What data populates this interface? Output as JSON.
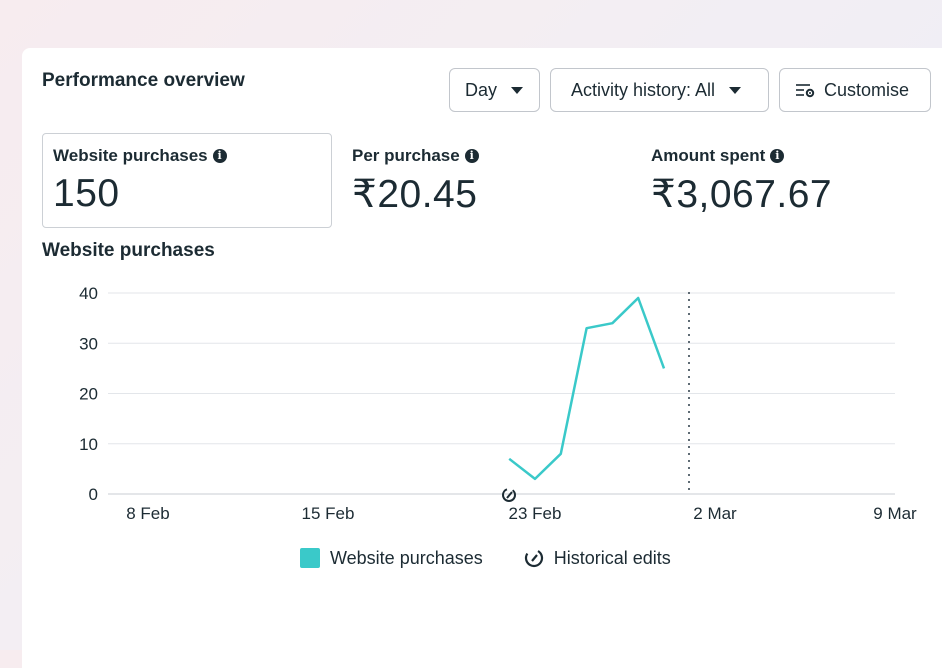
{
  "panel": {
    "title": "Performance overview",
    "day_label": "Day",
    "activity_label": "Activity history: All",
    "customise_label": "Customise"
  },
  "metrics": [
    {
      "label": "Website purchases",
      "value": "150"
    },
    {
      "label": "Per purchase",
      "value": "₹20.45"
    },
    {
      "label": "Amount spent",
      "value": "₹3,067.67"
    }
  ],
  "colors": {
    "series": "#3ac9c9",
    "grid": "#e3e6ea",
    "axis_text": "#1c2b33"
  },
  "chart_data": {
    "type": "line",
    "title": "Website purchases",
    "x_ticks": [
      "8 Feb",
      "15 Feb",
      "23 Feb",
      "2 Mar",
      "9 Mar"
    ],
    "y_ticks": [
      "0",
      "10",
      "20",
      "30",
      "40"
    ],
    "ylim": [
      0,
      40
    ],
    "grid": true,
    "legend": [
      "Website purchases",
      "Historical edits"
    ],
    "series": [
      {
        "name": "Website purchases",
        "x": [
          "22 Feb",
          "23 Feb",
          "24 Feb",
          "25 Feb",
          "26 Feb",
          "27 Feb",
          "28 Feb"
        ],
        "values": [
          7,
          3,
          8,
          33,
          34,
          39,
          25
        ]
      }
    ]
  }
}
